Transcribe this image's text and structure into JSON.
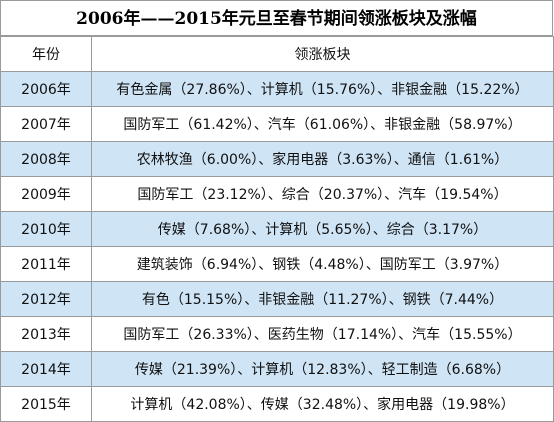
{
  "title": "2006年——2015年元旦至春节期间领涨板块及涨幅",
  "headers": {
    "year": "年份",
    "sectors": "领涨板块"
  },
  "rows": [
    {
      "year": "2006年",
      "sectors": "有色金属（27.86%）、计算机（15.76%）、非银金融（15.22%）"
    },
    {
      "year": "2007年",
      "sectors": "国防军工（61.42%）、汽车（61.06%）、非银金融（58.97%）"
    },
    {
      "year": "2008年",
      "sectors": "农林牧渔（6.00%）、家用电器（3.63%）、通信（1.61%）"
    },
    {
      "year": "2009年",
      "sectors": "国防军工（23.12%）、综合（20.37%）、汽车（19.54%）"
    },
    {
      "year": "2010年",
      "sectors": "传媒（7.68%）、计算机（5.65%）、综合（3.17%）"
    },
    {
      "year": "2011年",
      "sectors": "建筑装饰（6.94%）、钢铁（4.48%）、国防军工（3.97%）"
    },
    {
      "year": "2012年",
      "sectors": "有色（15.15%）、非银金融（11.27%）、钢铁（7.44%）"
    },
    {
      "year": "2013年",
      "sectors": "国防军工（26.33%）、医药生物（17.14%）、汽车（15.55%）"
    },
    {
      "year": "2014年",
      "sectors": "传媒（21.39%）、计算机（12.83%）、轻工制造（6.68%）"
    },
    {
      "year": "2015年",
      "sectors": "计算机（42.08%）、传媒（32.48%）、家用电器（19.98%）"
    }
  ],
  "colors": {
    "shaded_row": "#cfe4f5",
    "border": "#9a9a9a"
  }
}
